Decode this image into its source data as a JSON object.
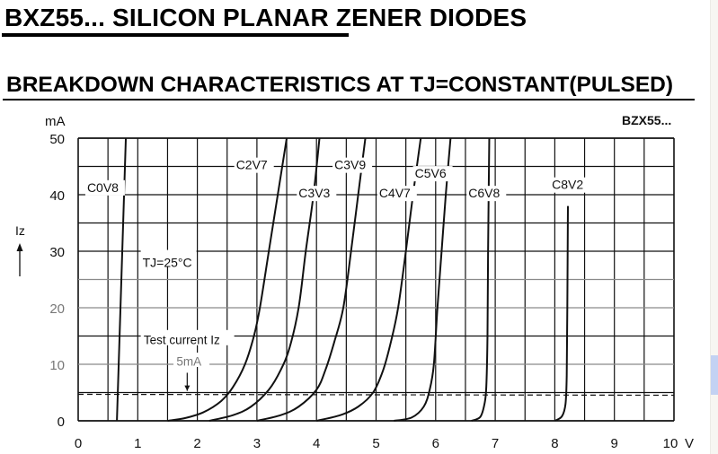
{
  "page": {
    "title": "BXZ55... SILICON PLANAR ZENER DIODES",
    "subtitle": "BREAKDOWN CHARACTERISTICS AT TJ=CONSTANT(PULSED)",
    "part_label": "BZX55..."
  },
  "chart_data": {
    "type": "line",
    "title": "BREAKDOWN CHARACTERISTICS AT TJ=CONSTANT(PULSED)",
    "xlabel": "V",
    "ylabel": "Iz",
    "yunit": "mA",
    "xlim": [
      0,
      10
    ],
    "ylim": [
      0,
      50
    ],
    "x_ticks": [
      "0",
      "1",
      "2",
      "3",
      "4",
      "5",
      "6",
      "7",
      "8",
      "9",
      "10"
    ],
    "y_ticks": [
      "0",
      "10",
      "20",
      "30",
      "40",
      "50"
    ],
    "grid": true,
    "annotations": {
      "temperature": "TJ=25°C",
      "test_current_label": "Test current Iz",
      "test_current_value": "5mA",
      "test_current_level": 5
    },
    "series": [
      {
        "name": "C0V8",
        "points": [
          [
            0.65,
            0
          ],
          [
            0.68,
            10
          ],
          [
            0.71,
            20
          ],
          [
            0.74,
            30
          ],
          [
            0.77,
            40
          ],
          [
            0.8,
            50
          ]
        ],
        "label_pos": [
          0.15,
          40.5
        ]
      },
      {
        "name": "C2V7",
        "points": [
          [
            1.5,
            0
          ],
          [
            1.8,
            0.5
          ],
          [
            2.1,
            1.5
          ],
          [
            2.4,
            3.5
          ],
          [
            2.6,
            6
          ],
          [
            2.8,
            10
          ],
          [
            2.95,
            15
          ],
          [
            3.05,
            20
          ],
          [
            3.2,
            30
          ],
          [
            3.35,
            40
          ],
          [
            3.5,
            50
          ]
        ],
        "label_pos": [
          2.65,
          44.5
        ]
      },
      {
        "name": "C3V3",
        "points": [
          [
            2.2,
            0
          ],
          [
            2.6,
            1
          ],
          [
            2.9,
            2.5
          ],
          [
            3.2,
            5.5
          ],
          [
            3.4,
            9
          ],
          [
            3.55,
            13
          ],
          [
            3.7,
            20
          ],
          [
            3.82,
            30
          ],
          [
            3.95,
            40
          ],
          [
            4.05,
            50
          ]
        ],
        "label_pos": [
          3.7,
          39.5
        ]
      },
      {
        "name": "C3V9",
        "points": [
          [
            3.0,
            0
          ],
          [
            3.4,
            1
          ],
          [
            3.7,
            2.5
          ],
          [
            4.0,
            5.5
          ],
          [
            4.15,
            9
          ],
          [
            4.3,
            14
          ],
          [
            4.45,
            20
          ],
          [
            4.58,
            30
          ],
          [
            4.7,
            40
          ],
          [
            4.82,
            50
          ]
        ],
        "label_pos": [
          4.3,
          44.5
        ]
      },
      {
        "name": "C4V7",
        "points": [
          [
            4.0,
            0
          ],
          [
            4.4,
            1
          ],
          [
            4.7,
            2.5
          ],
          [
            4.95,
            5
          ],
          [
            5.12,
            9
          ],
          [
            5.25,
            14
          ],
          [
            5.37,
            20
          ],
          [
            5.5,
            30
          ],
          [
            5.62,
            40
          ],
          [
            5.75,
            50
          ]
        ],
        "label_pos": [
          5.05,
          39.5
        ]
      },
      {
        "name": "C5V6",
        "points": [
          [
            5.3,
            0
          ],
          [
            5.6,
            0.6
          ],
          [
            5.8,
            2.5
          ],
          [
            5.9,
            5.5
          ],
          [
            5.97,
            10
          ],
          [
            6.03,
            20
          ],
          [
            6.1,
            30
          ],
          [
            6.17,
            40
          ],
          [
            6.25,
            50
          ]
        ],
        "label_pos": [
          5.65,
          43
        ]
      },
      {
        "name": "C6V8",
        "points": [
          [
            6.6,
            0
          ],
          [
            6.75,
            0.7
          ],
          [
            6.82,
            3
          ],
          [
            6.85,
            6
          ],
          [
            6.87,
            15
          ],
          [
            6.88,
            30
          ],
          [
            6.9,
            50
          ]
        ],
        "label_pos": [
          6.55,
          39.5
        ]
      },
      {
        "name": "C8V2",
        "points": [
          [
            8.0,
            0
          ],
          [
            8.12,
            0.8
          ],
          [
            8.18,
            3
          ],
          [
            8.2,
            8
          ],
          [
            8.21,
            20
          ],
          [
            8.22,
            38
          ]
        ],
        "label_pos": [
          7.95,
          41
        ]
      }
    ]
  }
}
